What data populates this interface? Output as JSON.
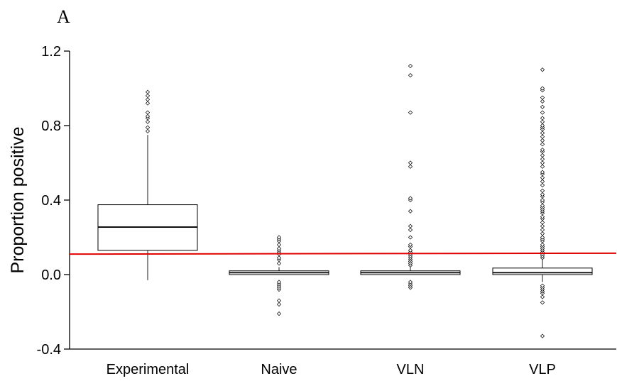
{
  "panel_label": "A",
  "chart_data": {
    "type": "box",
    "title": "",
    "xlabel": "",
    "ylabel": "Proportion positive",
    "ylim": [
      -0.4,
      1.2
    ],
    "yticks": [
      -0.4,
      0.0,
      0.4,
      0.8,
      1.2
    ],
    "ytick_labels": [
      "-0.4",
      "0.0",
      "0.4",
      "0.8",
      "1.2"
    ],
    "grid": false,
    "reference_line": {
      "y_start": 0.11,
      "y_end": 0.115,
      "color": "#e00000"
    },
    "categories": [
      "Experimental",
      "Naive",
      "VLN",
      "VLP"
    ],
    "boxes": [
      {
        "name": "Experimental",
        "whisker_low": -0.03,
        "q1": 0.13,
        "median": 0.255,
        "q3": 0.375,
        "whisker_high": 0.75,
        "outliers": [
          0.77,
          0.79,
          0.82,
          0.84,
          0.85,
          0.87,
          0.92,
          0.94,
          0.96,
          0.98
        ]
      },
      {
        "name": "Naive",
        "whisker_low": 0.0,
        "q1": 0.0,
        "median": 0.01,
        "q3": 0.02,
        "whisker_high": 0.04,
        "outliers": [
          -0.21,
          -0.16,
          -0.14,
          -0.08,
          -0.07,
          -0.06,
          -0.05,
          -0.04,
          0.06,
          0.08,
          0.09,
          0.11,
          0.12,
          0.13,
          0.14,
          0.16,
          0.18,
          0.19,
          0.2
        ]
      },
      {
        "name": "VLN",
        "whisker_low": 0.0,
        "q1": 0.0,
        "median": 0.01,
        "q3": 0.02,
        "whisker_high": 0.04,
        "outliers": [
          -0.07,
          -0.06,
          -0.05,
          -0.04,
          0.05,
          0.06,
          0.07,
          0.08,
          0.09,
          0.1,
          0.11,
          0.12,
          0.13,
          0.15,
          0.16,
          0.2,
          0.24,
          0.26,
          0.34,
          0.4,
          0.41,
          0.58,
          0.6,
          0.87,
          1.07,
          1.12
        ]
      },
      {
        "name": "VLP",
        "whisker_low": -0.04,
        "q1": 0.0,
        "median": 0.01,
        "q3": 0.035,
        "whisker_high": 0.08,
        "outliers": [
          -0.33,
          -0.15,
          -0.12,
          -0.1,
          -0.09,
          -0.08,
          -0.07,
          -0.06,
          0.09,
          0.1,
          0.11,
          0.12,
          0.13,
          0.14,
          0.15,
          0.16,
          0.18,
          0.19,
          0.2,
          0.22,
          0.24,
          0.26,
          0.28,
          0.3,
          0.31,
          0.33,
          0.34,
          0.35,
          0.36,
          0.37,
          0.39,
          0.4,
          0.42,
          0.43,
          0.45,
          0.48,
          0.5,
          0.52,
          0.54,
          0.55,
          0.58,
          0.6,
          0.62,
          0.64,
          0.66,
          0.67,
          0.7,
          0.72,
          0.74,
          0.76,
          0.78,
          0.79,
          0.8,
          0.82,
          0.84,
          0.87,
          0.9,
          0.93,
          0.95,
          0.99,
          1.0,
          1.1
        ]
      }
    ]
  }
}
